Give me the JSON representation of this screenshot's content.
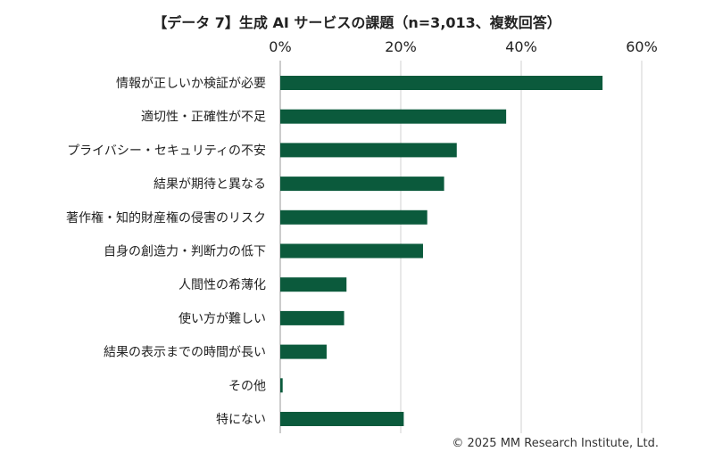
{
  "chart_data": {
    "type": "bar",
    "orientation": "horizontal",
    "title": "【データ 7】生成 AI サービスの課題（n=3,013、複数回答）",
    "categories": [
      "情報が正しいか検証が必要",
      "適切性・正確性が不足",
      "プライバシー・セキュリティの不安",
      "結果が期待と異なる",
      "著作権・知的財産権の侵害のリスク",
      "自身の創造力・判断力の低下",
      "人間性の希薄化",
      "使い方が難しい",
      "結果の表示までの時間が長い",
      "その他",
      "特にない"
    ],
    "values": [
      53.5,
      37.5,
      29.3,
      27.2,
      24.4,
      23.7,
      11.0,
      10.6,
      7.7,
      0.4,
      20.5
    ],
    "xlim": [
      0,
      60
    ],
    "ticks": [
      "0%",
      "20%",
      "40%",
      "60%"
    ],
    "tick_values": [
      0,
      20,
      40,
      60
    ],
    "axis_position": "top",
    "grid": true,
    "bar_color": "#0b5a3c"
  },
  "footer": {
    "copyright": "© 2025 MM Research Institute, Ltd."
  }
}
